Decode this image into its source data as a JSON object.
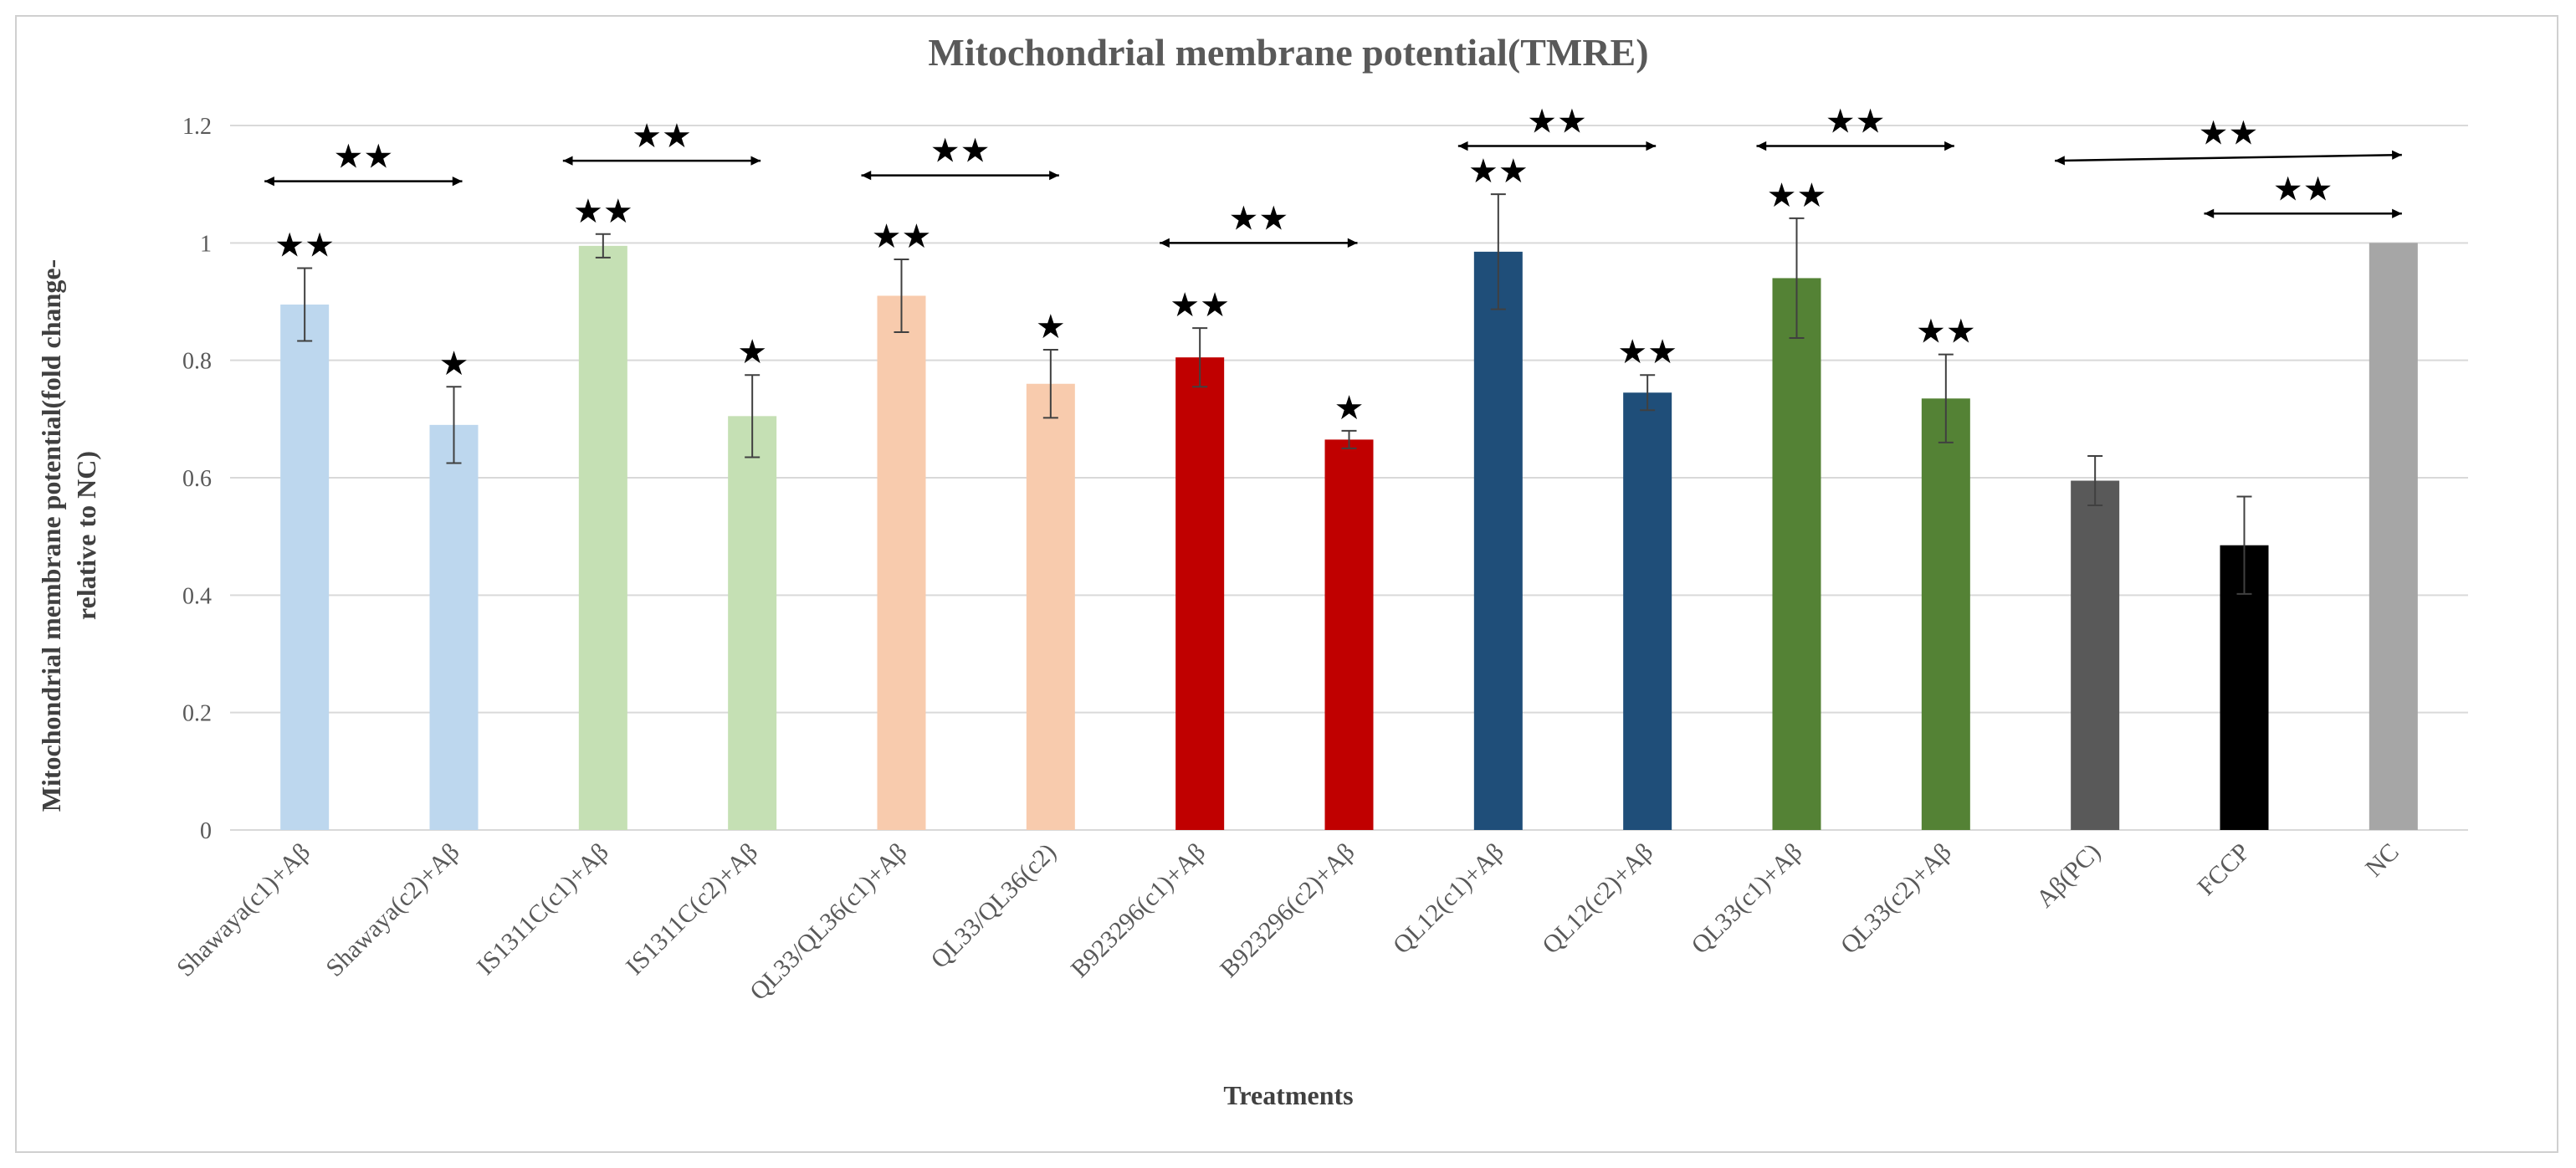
{
  "chart_data": {
    "type": "bar",
    "title": "Mitochondrial membrane potential(TMRE)",
    "xlabel": "Treatments",
    "ylabel": "Mitochondrial membrane potential(fold change-relative to NC)",
    "ylabel_lines": [
      "Mitochondrial membrane potential(fold change-",
      "relative to NC)"
    ],
    "ylim": [
      0,
      1.2
    ],
    "yticks": [
      0,
      0.2,
      0.4,
      0.6,
      0.8,
      1,
      1.2
    ],
    "ytick_labels": [
      "0",
      "0.2",
      "0.4",
      "0.6",
      "0.8",
      "1",
      "1.2"
    ],
    "grid": true,
    "legend": "none",
    "categories": [
      "Shawaya(c1)+Aβ",
      "Shawaya(c2)+Aβ",
      "IS1311C(c1)+Aβ",
      "IS1311C(c2)+Aβ",
      "QL33/QL36(c1)+Aβ",
      "QL33/QL36(c2)",
      "B923296(c1)+Aβ",
      "B923296(c2)+Aβ",
      "QL12(c1)+Aβ",
      "QL12(c2)+Aβ",
      "QL33(c1)+Aβ",
      "QL33(c2)+Aβ",
      "Aβ(PC)",
      "FCCP",
      "NC"
    ],
    "values": [
      0.895,
      0.69,
      0.995,
      0.705,
      0.91,
      0.76,
      0.805,
      0.665,
      0.985,
      0.745,
      0.94,
      0.735,
      0.595,
      0.485,
      1.0
    ],
    "errors": [
      0.062,
      0.065,
      0.02,
      0.07,
      0.062,
      0.058,
      0.05,
      0.015,
      0.098,
      0.03,
      0.102,
      0.075,
      0.042,
      0.083,
      0
    ],
    "colors": [
      "#bdd7ee",
      "#bdd7ee",
      "#c5e0b4",
      "#c5e0b4",
      "#f8cbad",
      "#f8cbad",
      "#c00000",
      "#c00000",
      "#1f4e79",
      "#1f4e79",
      "#548235",
      "#548235",
      "#595959",
      "#000000",
      "#a6a6a6"
    ],
    "bar_stars": [
      2,
      1,
      2,
      1,
      2,
      1,
      2,
      1,
      2,
      2,
      2,
      2,
      0,
      0,
      0
    ],
    "comparisons": [
      {
        "from": 0,
        "to": 1,
        "y": 1.105,
        "stars": 2
      },
      {
        "from": 2,
        "to": 3,
        "y": 1.14,
        "stars": 2
      },
      {
        "from": 4,
        "to": 5,
        "y": 1.115,
        "stars": 2
      },
      {
        "from": 6,
        "to": 7,
        "y": 1.0,
        "stars": 2
      },
      {
        "from": 8,
        "to": 9,
        "y": 1.165,
        "stars": 2
      },
      {
        "from": 10,
        "to": 11,
        "y": 1.165,
        "stars": 2
      },
      {
        "from": 12,
        "to": 14,
        "y": 1.14,
        "y2": 1.15,
        "stars": 2
      },
      {
        "from": 13,
        "to": 14,
        "y": 1.05,
        "stars": 2
      }
    ],
    "star_glyph": "★"
  },
  "colors": {
    "grid": "#d9d9d9",
    "axis": "#d9d9d9",
    "text": "#595959",
    "error": "#404040",
    "annotation": "#000000"
  }
}
